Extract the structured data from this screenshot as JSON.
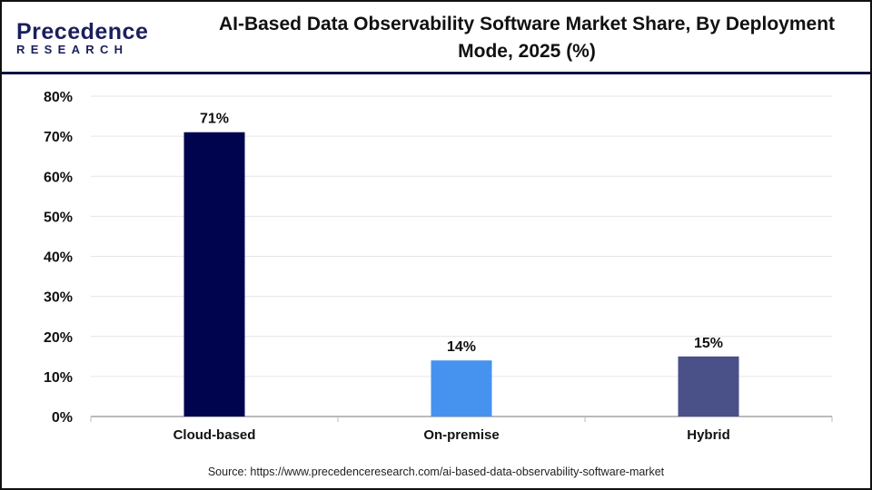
{
  "logo": {
    "line1": "Precedence",
    "line2": "RESEARCH"
  },
  "title": "AI-Based Data Observability Software Market Share, By Deployment Mode, 2025 (%)",
  "source": "Source: https://www.precedenceresearch.com/ai-based-data-observability-software-market",
  "chart_data": {
    "type": "bar",
    "title": "AI-Based Data Observability Software Market Share, By Deployment Mode, 2025 (%)",
    "categories": [
      "Cloud-based",
      "On-premise",
      "Hybrid"
    ],
    "values": [
      71,
      14,
      15
    ],
    "data_labels": [
      "71%",
      "14%",
      "15%"
    ],
    "colors": [
      "#00044f",
      "#4593ee",
      "#4a5088"
    ],
    "ylim": [
      0,
      80
    ],
    "yticks": [
      "0%",
      "10%",
      "20%",
      "30%",
      "40%",
      "50%",
      "60%",
      "70%",
      "80%"
    ],
    "xlabel": "",
    "ylabel": "",
    "grid": true,
    "legend": "none"
  }
}
